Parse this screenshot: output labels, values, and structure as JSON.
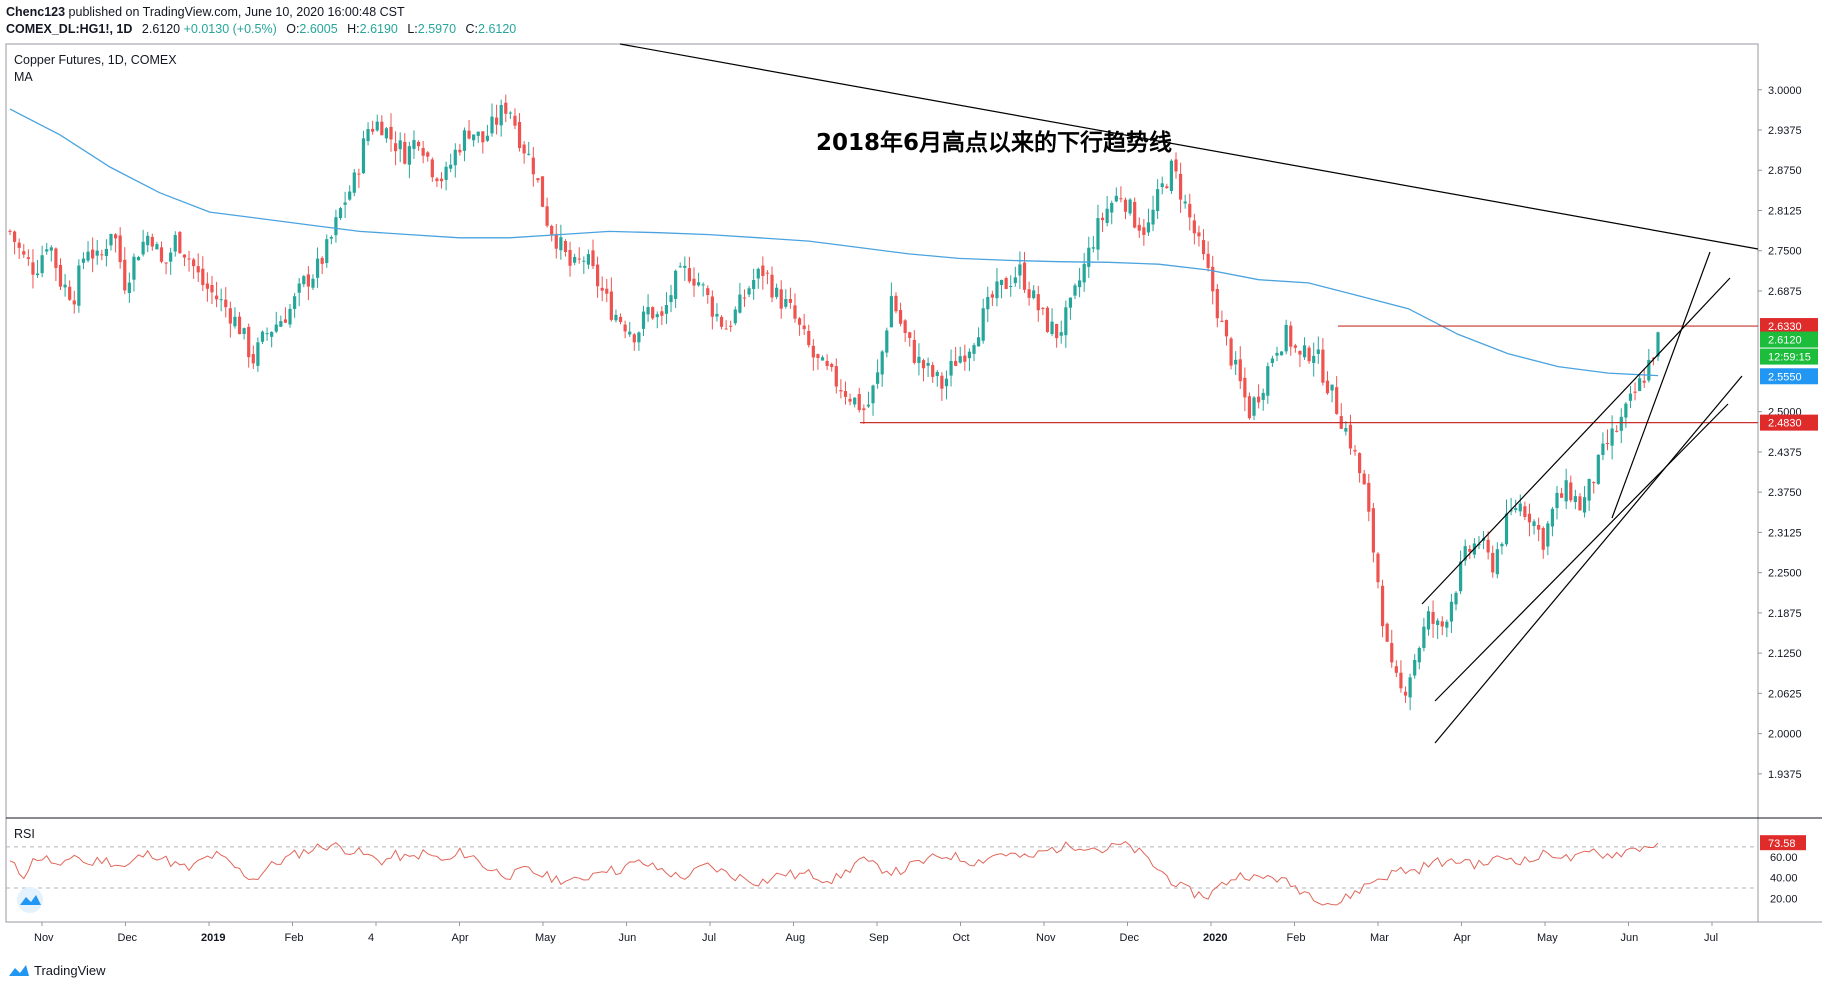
{
  "header": {
    "user": "Chenc123",
    "published": "published on TradingView.com, June 10, 2020 16:00:48 CST",
    "symbol": "COMEX_DL:HG1!, 1D",
    "price": "2.6120",
    "change": "+0.0130 (+0.5%)",
    "o_label": "O:",
    "o_value": "2.6005",
    "h_label": "H:",
    "h_value": "2.6190",
    "l_label": "L:",
    "l_value": "2.5970",
    "c_label": "C:",
    "c_value": "2.6120"
  },
  "legend": {
    "title": "Copper Futures, 1D, COMEX",
    "ma": "MA"
  },
  "annotation": "2018年6月高点以来的下行趋势线",
  "rsi_label": "RSI",
  "footer": {
    "brand": "TradingView"
  },
  "colors": {
    "up": "#26a69a",
    "down": "#ef5350",
    "ma": "#4aa3df",
    "rsi": "#e0665a",
    "level_line": "#c9302c",
    "trendline": "#000000",
    "tag_red": "#e02b2b",
    "tag_green": "#1bbd3a",
    "tag_blue": "#2196f3"
  },
  "chart_data": {
    "type": "candlestick",
    "title": "Copper Futures, 1D, COMEX",
    "y_range": [
      1.9,
      3.04
    ],
    "y_ticks": [
      "3.0000",
      "2.9375",
      "2.8750",
      "2.8125",
      "2.7500",
      "2.6875",
      "2.5000",
      "2.4375",
      "2.3750",
      "2.3125",
      "2.2500",
      "2.1875",
      "2.1250",
      "2.0625",
      "2.0000",
      "1.9375"
    ],
    "x_ticks": [
      {
        "label": "Nov",
        "bold": false
      },
      {
        "label": "Dec",
        "bold": false
      },
      {
        "label": "2019",
        "bold": true
      },
      {
        "label": "Feb",
        "bold": false
      },
      {
        "label": "4",
        "bold": false
      },
      {
        "label": "Apr",
        "bold": false
      },
      {
        "label": "May",
        "bold": false
      },
      {
        "label": "Jun",
        "bold": false
      },
      {
        "label": "Jul",
        "bold": false
      },
      {
        "label": "Aug",
        "bold": false
      },
      {
        "label": "Sep",
        "bold": false
      },
      {
        "label": "Oct",
        "bold": false
      },
      {
        "label": "Nov",
        "bold": false
      },
      {
        "label": "Dec",
        "bold": false
      },
      {
        "label": "2020",
        "bold": true
      },
      {
        "label": "Feb",
        "bold": false
      },
      {
        "label": "Mar",
        "bold": false
      },
      {
        "label": "Apr",
        "bold": false
      },
      {
        "label": "May",
        "bold": false
      },
      {
        "label": "Jun",
        "bold": false
      },
      {
        "label": "Jul",
        "bold": false
      }
    ],
    "close_path": [
      2.78,
      2.74,
      2.72,
      2.77,
      2.7,
      2.68,
      2.76,
      2.73,
      2.79,
      2.7,
      2.75,
      2.78,
      2.72,
      2.77,
      2.74,
      2.7,
      2.68,
      2.66,
      2.63,
      2.58,
      2.62,
      2.64,
      2.66,
      2.7,
      2.72,
      2.76,
      2.82,
      2.86,
      2.94,
      2.95,
      2.92,
      2.9,
      2.93,
      2.88,
      2.86,
      2.91,
      2.94,
      2.92,
      2.95,
      2.98,
      2.92,
      2.88,
      2.8,
      2.76,
      2.72,
      2.74,
      2.7,
      2.66,
      2.64,
      2.62,
      2.66,
      2.64,
      2.7,
      2.72,
      2.7,
      2.66,
      2.63,
      2.66,
      2.7,
      2.72,
      2.68,
      2.66,
      2.62,
      2.58,
      2.56,
      2.54,
      2.52,
      2.5,
      2.56,
      2.68,
      2.62,
      2.58,
      2.56,
      2.54,
      2.58,
      2.6,
      2.64,
      2.68,
      2.7,
      2.72,
      2.68,
      2.64,
      2.62,
      2.66,
      2.72,
      2.78,
      2.82,
      2.84,
      2.8,
      2.78,
      2.84,
      2.88,
      2.82,
      2.76,
      2.7,
      2.62,
      2.56,
      2.5,
      2.54,
      2.6,
      2.62,
      2.58,
      2.6,
      2.55,
      2.5,
      2.45,
      2.38,
      2.25,
      2.1,
      2.06,
      2.12,
      2.18,
      2.16,
      2.22,
      2.28,
      2.3,
      2.26,
      2.32,
      2.36,
      2.34,
      2.3,
      2.36,
      2.38,
      2.35,
      2.4,
      2.45,
      2.48,
      2.52,
      2.56,
      2.612
    ],
    "ma_path": [
      2.97,
      2.93,
      2.88,
      2.84,
      2.81,
      2.8,
      2.79,
      2.78,
      2.775,
      2.77,
      2.77,
      2.775,
      2.78,
      2.778,
      2.775,
      2.77,
      2.765,
      2.755,
      2.745,
      2.738,
      2.735,
      2.733,
      2.732,
      2.729,
      2.72,
      2.705,
      2.7,
      2.68,
      2.66,
      2.62,
      2.59,
      2.57,
      2.56,
      2.556
    ],
    "levels": [
      2.633,
      2.483
    ],
    "price_tags": [
      {
        "value": "2.6330",
        "color": "red"
      },
      {
        "value": "2.6120",
        "color": "green"
      },
      {
        "value": "12:59:15",
        "color": "green"
      },
      {
        "value": "2.5550",
        "color": "blue"
      },
      {
        "value": "2.4830",
        "color": "red"
      }
    ],
    "rsi": {
      "ticks": [
        "60.00",
        "40.00",
        "20.00"
      ],
      "last": "73.58",
      "overbought": 70,
      "oversold": 30,
      "path": [
        55,
        42,
        60,
        58,
        48,
        64,
        52,
        58,
        55,
        50,
        60,
        64,
        58,
        52,
        48,
        58,
        62,
        55,
        45,
        38,
        50,
        56,
        62,
        66,
        70,
        72,
        68,
        65,
        60,
        56,
        62,
        58,
        64,
        60,
        55,
        65,
        60,
        50,
        45,
        42,
        48,
        44,
        40,
        38,
        36,
        42,
        50,
        46,
        52,
        55,
        50,
        46,
        40,
        44,
        52,
        48,
        42,
        40,
        36,
        38,
        45,
        42,
        44,
        40,
        38,
        46,
        58,
        52,
        48,
        45,
        52,
        56,
        60,
        62,
        58,
        55,
        60,
        64,
        62,
        58,
        64,
        68,
        70,
        72,
        70,
        66,
        72,
        70,
        62,
        50,
        40,
        30,
        25,
        22,
        32,
        40,
        44,
        38,
        42,
        36,
        30,
        24,
        18,
        14,
        22,
        30,
        38,
        42,
        48,
        46,
        52,
        56,
        54,
        58,
        52,
        56,
        60,
        58,
        56,
        62,
        64,
        58,
        60,
        66,
        62,
        64,
        68,
        70,
        73.58
      ]
    }
  }
}
